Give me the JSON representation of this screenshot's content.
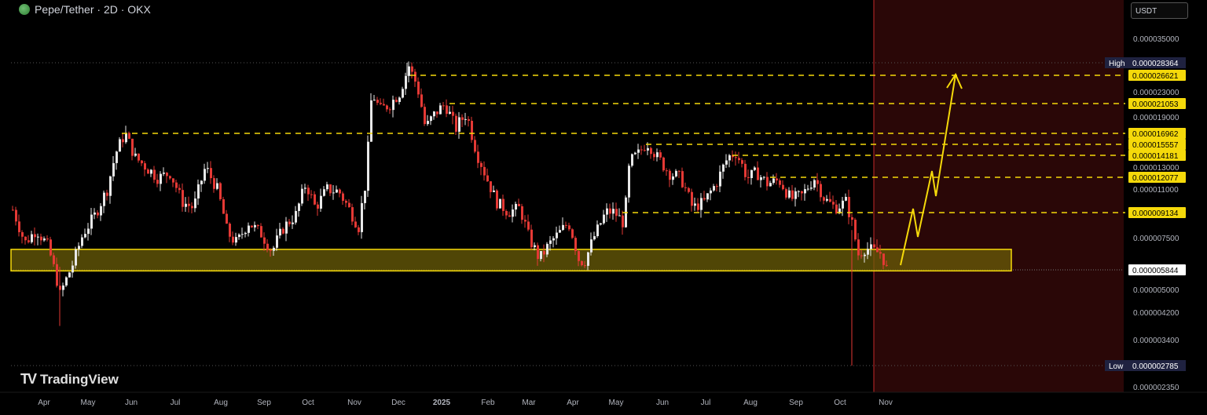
{
  "header": {
    "title": "Pepe/Tether · 2D · OKX",
    "icon": "pepe-coin-icon"
  },
  "currency_button": "USDT",
  "branding": {
    "name": "TradingView",
    "icon": "tradingview-logo-icon"
  },
  "chart_data": {
    "type": "candlestick",
    "price_scale": {
      "tick_labels": [
        "0.000035000",
        "0.000023000",
        "0.000019000",
        "0.000013000",
        "0.000011000",
        "0.000007500",
        "0.000005000",
        "0.000004200",
        "0.000003400",
        "0.000002350"
      ],
      "high": {
        "label": "High",
        "value": "0.000028364"
      },
      "low": {
        "label": "Low",
        "value": "0.000002785"
      },
      "current_price": "0.000005844"
    },
    "time_axis": [
      "Apr",
      "May",
      "Jun",
      "Jul",
      "Aug",
      "Sep",
      "Oct",
      "Nov",
      "Dec",
      "2025",
      "Feb",
      "Mar",
      "Apr",
      "May",
      "Jun",
      "Jul",
      "Aug",
      "Sep",
      "Oct",
      "Nov"
    ],
    "resistance_levels": [
      "0.000026621",
      "0.000021053",
      "0.000016962",
      "0.000015557",
      "0.000014181",
      "0.000012077",
      "0.000009134"
    ],
    "support_zone": {
      "low": 5.8e-06,
      "high": 6.9e-06
    },
    "projection": "yellow arrow upward toward 0.000026621",
    "colors": {
      "up": "#e8e8e8",
      "down": "#e53935",
      "level": "#f5d90a",
      "zone_fill": "#6b5e08",
      "forecast_bg": "#2a0707",
      "axis_text": "#b2b5be"
    }
  }
}
